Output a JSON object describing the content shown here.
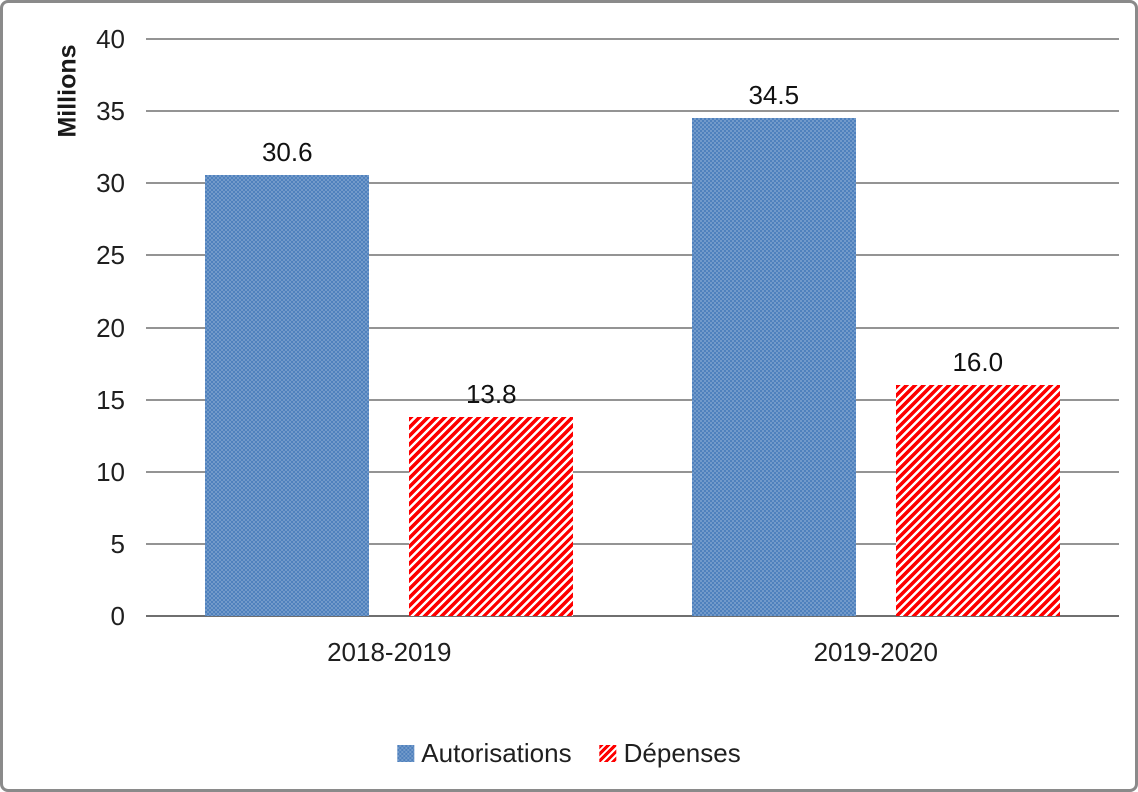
{
  "chart_data": {
    "type": "bar",
    "categories": [
      "2018-2019",
      "2019-2020"
    ],
    "series": [
      {
        "name": "Autorisations",
        "values": [
          30.6,
          34.5
        ],
        "color": "#4f81bd",
        "fill": "solid"
      },
      {
        "name": "Dépenses",
        "values": [
          13.8,
          16.0
        ],
        "color": "#fe0000",
        "fill": "diagonal-stripes"
      }
    ],
    "data_labels": [
      "30.6",
      "13.8",
      "34.5",
      "16.0"
    ],
    "y_axis": {
      "title": "Millions",
      "min": 0,
      "max": 40,
      "tick_interval": 5,
      "ticks": [
        0,
        5,
        10,
        15,
        20,
        25,
        30,
        35,
        40
      ]
    },
    "x_axis": {
      "tick_labels": [
        "2018-2019",
        "2019-2020"
      ]
    },
    "legend": {
      "position": "bottom",
      "entries": [
        "Autorisations",
        "Dépenses"
      ]
    },
    "grid": true,
    "title": ""
  },
  "frame": {
    "border_color": "#8a8a8a",
    "background": "#ffffff"
  }
}
